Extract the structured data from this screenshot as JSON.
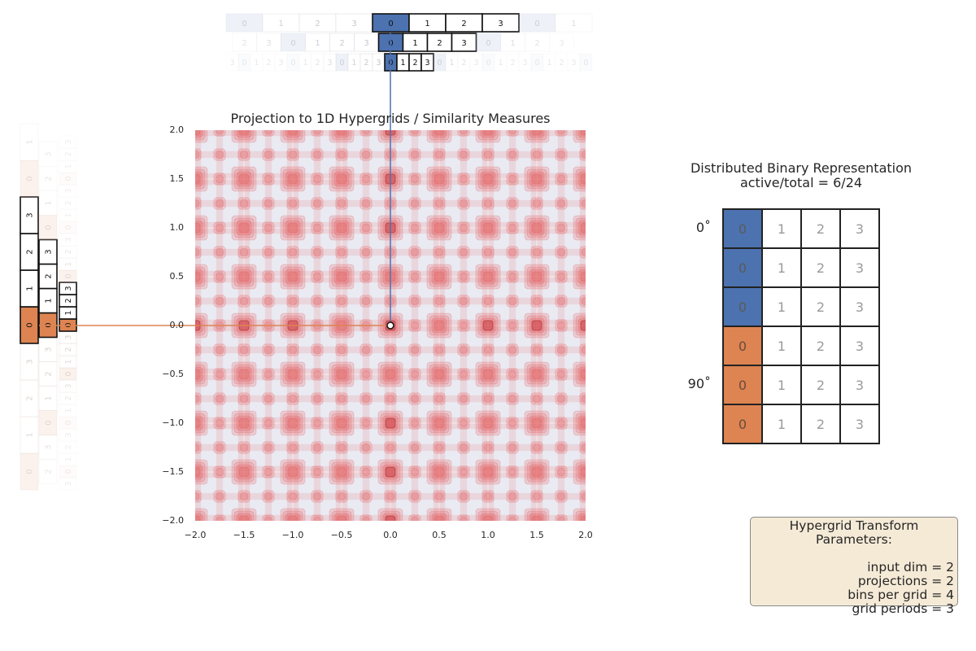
{
  "plot": {
    "title": "Projection to 1D Hypergrids / Similarity Measures",
    "xticks": [
      "−2.0",
      "−1.5",
      "−1.0",
      "−0.5",
      "0.0",
      "0.5",
      "1.0",
      "1.5",
      "2.0"
    ],
    "yticks": [
      "2.0",
      "1.5",
      "1.0",
      "0.5",
      "0.0",
      "−0.5",
      "−1.0",
      "−1.5",
      "−2.0"
    ],
    "xlim": [
      -2.0,
      2.0
    ],
    "ylim": [
      -2.0,
      2.0
    ],
    "input_point": [
      0.0,
      0.0
    ],
    "colors": {
      "background": "#eaeaf2",
      "similarity": "#e34a4a",
      "blue": "#4c72b0",
      "orange": "#dd8452"
    }
  },
  "top_hypergrid": {
    "bins_label": [
      "0",
      "1",
      "2",
      "3"
    ],
    "periods": 3,
    "active_bin": "0"
  },
  "left_hypergrid": {
    "bins_label": [
      "0",
      "1",
      "2",
      "3"
    ],
    "periods": 3,
    "active_bin": "0"
  },
  "representation": {
    "title_line1": "Distributed Binary Representation",
    "title_line2": "active/total = 6/24",
    "rows": [
      {
        "angle": "0˚",
        "cells": [
          "0",
          "1",
          "2",
          "3"
        ],
        "active": 0,
        "color": "blue"
      },
      {
        "angle": "",
        "cells": [
          "0",
          "1",
          "2",
          "3"
        ],
        "active": 0,
        "color": "blue"
      },
      {
        "angle": "",
        "cells": [
          "0",
          "1",
          "2",
          "3"
        ],
        "active": 0,
        "color": "blue"
      },
      {
        "angle": "",
        "cells": [
          "0",
          "1",
          "2",
          "3"
        ],
        "active": 0,
        "color": "orange"
      },
      {
        "angle": "90˚",
        "cells": [
          "0",
          "1",
          "2",
          "3"
        ],
        "active": 0,
        "color": "orange"
      },
      {
        "angle": "",
        "cells": [
          "0",
          "1",
          "2",
          "3"
        ],
        "active": 0,
        "color": "orange"
      }
    ]
  },
  "params": {
    "title": "Hypergrid Transform Parameters:",
    "lines": [
      "input dim = 2",
      "projections = 2",
      "bins per grid = 4",
      "grid periods = 3"
    ]
  }
}
